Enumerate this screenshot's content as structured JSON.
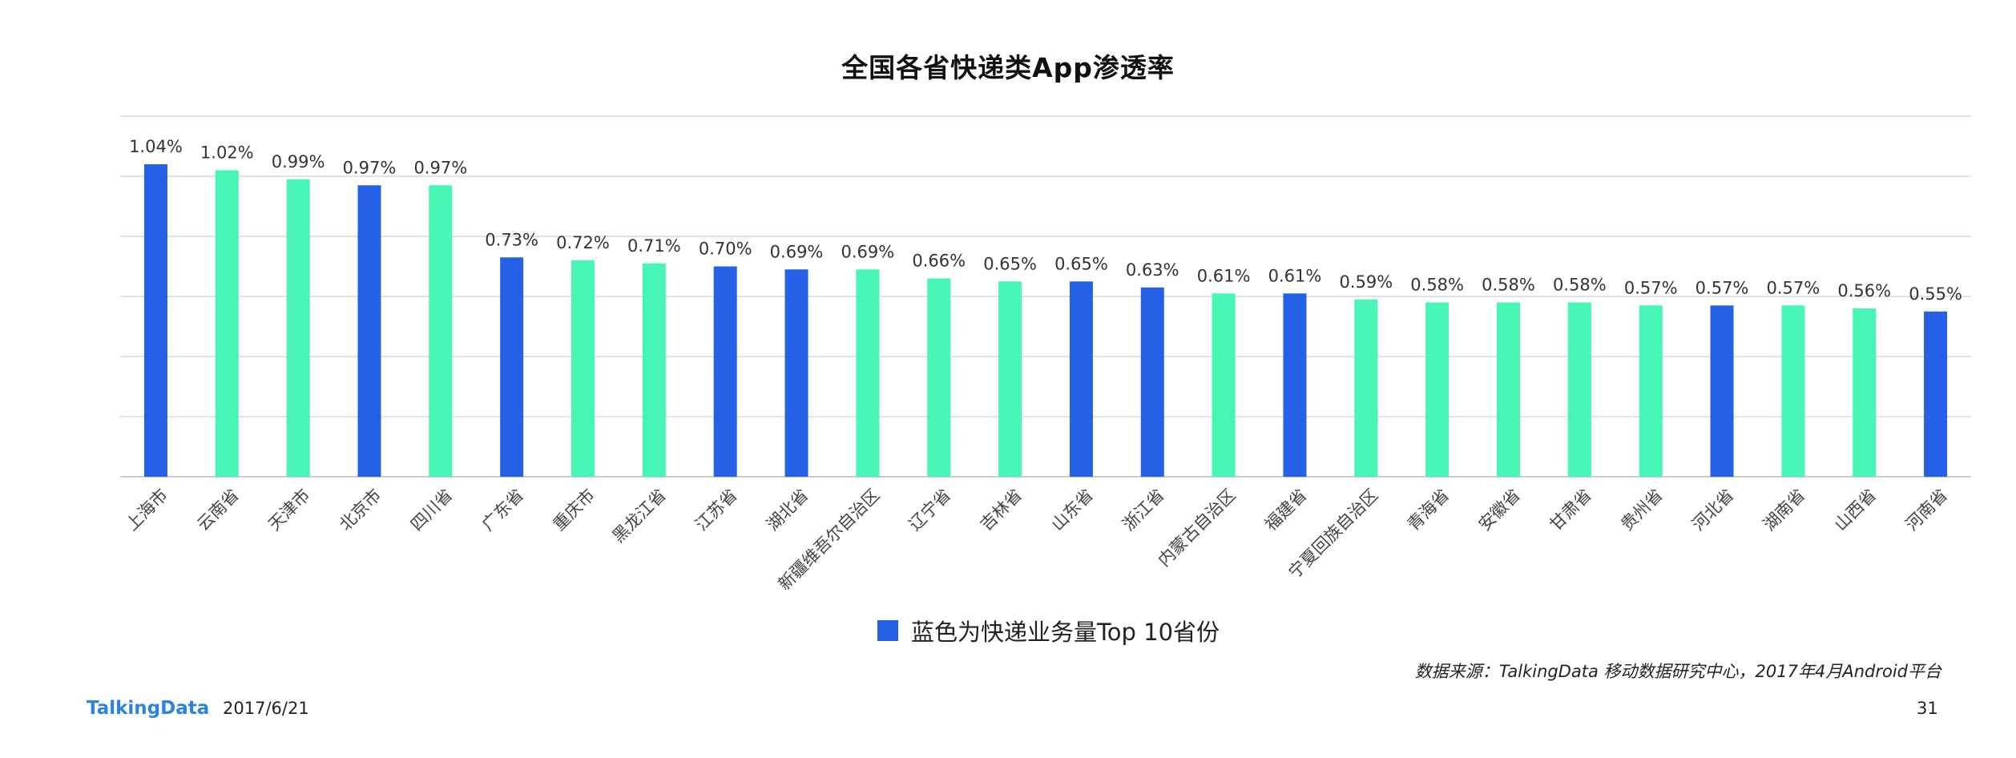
{
  "page": {
    "title": "全国各省快递类App渗透率",
    "legend_label": "蓝色为快递业务量Top 10省份",
    "source": "数据来源：TalkingData 移动数据研究中心，2017年4月Android平台",
    "brand": "TalkingData",
    "date": "2017/6/21",
    "page_number": "31"
  },
  "colors": {
    "top10": "#2461e6",
    "other": "#47f5b4",
    "brand": "#2a82e4",
    "grid": "#d9d9d9"
  },
  "chart_data": {
    "type": "bar",
    "title": "全国各省快递类App渗透率",
    "xlabel": "",
    "ylabel": "",
    "ylim": [
      0,
      1.2
    ],
    "grid": true,
    "legend_position": "bottom",
    "unit": "%",
    "categories": [
      "上海市",
      "云南省",
      "天津市",
      "北京市",
      "四川省",
      "广东省",
      "重庆市",
      "黑龙江省",
      "江苏省",
      "湖北省",
      "新疆维吾尔自治区",
      "辽宁省",
      "吉林省",
      "山东省",
      "浙江省",
      "内蒙古自治区",
      "福建省",
      "宁夏回族自治区",
      "青海省",
      "安徽省",
      "甘肃省",
      "贵州省",
      "河北省",
      "湖南省",
      "山西省",
      "河南省"
    ],
    "values": [
      1.04,
      1.02,
      0.99,
      0.97,
      0.97,
      0.73,
      0.72,
      0.71,
      0.7,
      0.69,
      0.69,
      0.66,
      0.65,
      0.65,
      0.63,
      0.61,
      0.61,
      0.59,
      0.58,
      0.58,
      0.58,
      0.57,
      0.57,
      0.57,
      0.56,
      0.55
    ],
    "labels": [
      "1.04%",
      "1.02%",
      "0.99%",
      "0.97%",
      "0.97%",
      "0.73%",
      "0.72%",
      "0.71%",
      "0.70%",
      "0.69%",
      "0.69%",
      "0.66%",
      "0.65%",
      "0.65%",
      "0.63%",
      "0.61%",
      "0.61%",
      "0.59%",
      "0.58%",
      "0.58%",
      "0.58%",
      "0.57%",
      "0.57%",
      "0.57%",
      "0.56%",
      "0.55%"
    ],
    "top10": [
      true,
      false,
      false,
      true,
      false,
      true,
      false,
      false,
      true,
      true,
      false,
      false,
      false,
      true,
      true,
      false,
      true,
      false,
      false,
      false,
      false,
      false,
      true,
      false,
      false,
      true
    ]
  }
}
